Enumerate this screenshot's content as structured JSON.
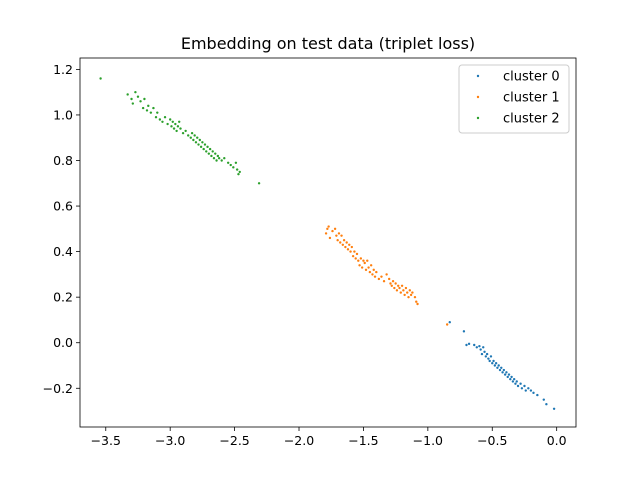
{
  "chart_data": {
    "type": "scatter",
    "title": "Embedding on test data (triplet loss)",
    "xlabel": "",
    "ylabel": "",
    "xlim": [
      -3.7,
      0.15
    ],
    "ylim": [
      -0.37,
      1.25
    ],
    "xticks": [
      -3.5,
      -3.0,
      -2.5,
      -2.0,
      -1.5,
      -1.0,
      -0.5,
      0.0
    ],
    "yticks": [
      -0.2,
      0.0,
      0.2,
      0.4,
      0.6,
      0.8,
      1.0,
      1.2
    ],
    "xtick_labels": [
      "−3.5",
      "−3.0",
      "−2.5",
      "−2.0",
      "−1.5",
      "−1.0",
      "−0.5",
      "0.0"
    ],
    "ytick_labels": [
      "−0.2",
      "0.0",
      "0.2",
      "0.4",
      "0.6",
      "0.8",
      "1.0",
      "1.2"
    ],
    "grid": false,
    "legend_position": "top-right",
    "series": [
      {
        "name": "cluster 0",
        "color": "#1f77b4",
        "points": [
          [
            -0.83,
            0.09
          ],
          [
            -0.72,
            0.05
          ],
          [
            -0.7,
            -0.01
          ],
          [
            -0.68,
            -0.005
          ],
          [
            -0.64,
            -0.01
          ],
          [
            -0.62,
            -0.02
          ],
          [
            -0.6,
            -0.015
          ],
          [
            -0.59,
            -0.03
          ],
          [
            -0.58,
            -0.05
          ],
          [
            -0.57,
            -0.02
          ],
          [
            -0.56,
            -0.04
          ],
          [
            -0.55,
            -0.06
          ],
          [
            -0.54,
            -0.05
          ],
          [
            -0.53,
            -0.07
          ],
          [
            -0.52,
            -0.08
          ],
          [
            -0.51,
            -0.06
          ],
          [
            -0.5,
            -0.09
          ],
          [
            -0.49,
            -0.08
          ],
          [
            -0.48,
            -0.1
          ],
          [
            -0.47,
            -0.09
          ],
          [
            -0.46,
            -0.11
          ],
          [
            -0.45,
            -0.1
          ],
          [
            -0.44,
            -0.12
          ],
          [
            -0.43,
            -0.11
          ],
          [
            -0.42,
            -0.13
          ],
          [
            -0.41,
            -0.12
          ],
          [
            -0.4,
            -0.14
          ],
          [
            -0.39,
            -0.13
          ],
          [
            -0.38,
            -0.15
          ],
          [
            -0.37,
            -0.14
          ],
          [
            -0.36,
            -0.16
          ],
          [
            -0.35,
            -0.15
          ],
          [
            -0.34,
            -0.17
          ],
          [
            -0.33,
            -0.16
          ],
          [
            -0.32,
            -0.18
          ],
          [
            -0.31,
            -0.17
          ],
          [
            -0.3,
            -0.19
          ],
          [
            -0.28,
            -0.18
          ],
          [
            -0.27,
            -0.2
          ],
          [
            -0.25,
            -0.19
          ],
          [
            -0.24,
            -0.21
          ],
          [
            -0.22,
            -0.2
          ],
          [
            -0.2,
            -0.21
          ],
          [
            -0.18,
            -0.22
          ],
          [
            -0.15,
            -0.23
          ],
          [
            -0.1,
            -0.25
          ],
          [
            -0.08,
            -0.27
          ],
          [
            -0.02,
            -0.29
          ]
        ]
      },
      {
        "name": "cluster 1",
        "color": "#ff7f0e",
        "points": [
          [
            -1.79,
            0.48
          ],
          [
            -1.78,
            0.5
          ],
          [
            -1.77,
            0.51
          ],
          [
            -1.76,
            0.46
          ],
          [
            -1.74,
            0.49
          ],
          [
            -1.72,
            0.5
          ],
          [
            -1.71,
            0.47
          ],
          [
            -1.7,
            0.45
          ],
          [
            -1.69,
            0.48
          ],
          [
            -1.68,
            0.44
          ],
          [
            -1.67,
            0.47
          ],
          [
            -1.66,
            0.43
          ],
          [
            -1.65,
            0.45
          ],
          [
            -1.64,
            0.42
          ],
          [
            -1.63,
            0.44
          ],
          [
            -1.62,
            0.41
          ],
          [
            -1.61,
            0.43
          ],
          [
            -1.6,
            0.4
          ],
          [
            -1.59,
            0.42
          ],
          [
            -1.58,
            0.38
          ],
          [
            -1.57,
            0.4
          ],
          [
            -1.56,
            0.37
          ],
          [
            -1.55,
            0.39
          ],
          [
            -1.54,
            0.36
          ],
          [
            -1.53,
            0.34
          ],
          [
            -1.52,
            0.37
          ],
          [
            -1.51,
            0.33
          ],
          [
            -1.5,
            0.36
          ],
          [
            -1.49,
            0.35
          ],
          [
            -1.48,
            0.32
          ],
          [
            -1.47,
            0.36
          ],
          [
            -1.46,
            0.33
          ],
          [
            -1.45,
            0.31
          ],
          [
            -1.44,
            0.34
          ],
          [
            -1.43,
            0.3
          ],
          [
            -1.42,
            0.32
          ],
          [
            -1.41,
            0.29
          ],
          [
            -1.4,
            0.31
          ],
          [
            -1.38,
            0.28
          ],
          [
            -1.36,
            0.29
          ],
          [
            -1.34,
            0.27
          ],
          [
            -1.32,
            0.3
          ],
          [
            -1.3,
            0.28
          ],
          [
            -1.29,
            0.26
          ],
          [
            -1.28,
            0.25
          ],
          [
            -1.27,
            0.27
          ],
          [
            -1.26,
            0.24
          ],
          [
            -1.25,
            0.26
          ],
          [
            -1.24,
            0.23
          ],
          [
            -1.23,
            0.25
          ],
          [
            -1.22,
            0.24
          ],
          [
            -1.21,
            0.22
          ],
          [
            -1.2,
            0.25
          ],
          [
            -1.19,
            0.23
          ],
          [
            -1.18,
            0.21
          ],
          [
            -1.17,
            0.24
          ],
          [
            -1.16,
            0.22
          ],
          [
            -1.15,
            0.2
          ],
          [
            -1.14,
            0.23
          ],
          [
            -1.13,
            0.21
          ],
          [
            -1.12,
            0.22
          ],
          [
            -1.1,
            0.2
          ],
          [
            -1.09,
            0.18
          ],
          [
            -1.08,
            0.17
          ],
          [
            -0.85,
            0.08
          ]
        ]
      },
      {
        "name": "cluster 2",
        "color": "#2ca02c",
        "points": [
          [
            -3.54,
            1.16
          ],
          [
            -3.33,
            1.09
          ],
          [
            -3.3,
            1.07
          ],
          [
            -3.29,
            1.05
          ],
          [
            -3.27,
            1.1
          ],
          [
            -3.25,
            1.08
          ],
          [
            -3.23,
            1.06
          ],
          [
            -3.21,
            1.03
          ],
          [
            -3.2,
            1.07
          ],
          [
            -3.18,
            1.02
          ],
          [
            -3.17,
            1.04
          ],
          [
            -3.15,
            1.01
          ],
          [
            -3.13,
            1.03
          ],
          [
            -3.11,
            0.99
          ],
          [
            -3.1,
            1.01
          ],
          [
            -3.08,
            0.98
          ],
          [
            -3.06,
            0.97
          ],
          [
            -3.04,
            0.99
          ],
          [
            -3.02,
            0.96
          ],
          [
            -3.0,
            0.98
          ],
          [
            -2.99,
            0.95
          ],
          [
            -2.98,
            0.97
          ],
          [
            -2.97,
            0.94
          ],
          [
            -2.96,
            0.96
          ],
          [
            -2.95,
            0.93
          ],
          [
            -2.94,
            0.95
          ],
          [
            -2.93,
            0.97
          ],
          [
            -2.92,
            0.94
          ],
          [
            -2.9,
            0.92
          ],
          [
            -2.88,
            0.93
          ],
          [
            -2.86,
            0.91
          ],
          [
            -2.84,
            0.9
          ],
          [
            -2.83,
            0.92
          ],
          [
            -2.82,
            0.89
          ],
          [
            -2.81,
            0.91
          ],
          [
            -2.8,
            0.88
          ],
          [
            -2.79,
            0.9
          ],
          [
            -2.78,
            0.87
          ],
          [
            -2.77,
            0.89
          ],
          [
            -2.76,
            0.86
          ],
          [
            -2.75,
            0.88
          ],
          [
            -2.74,
            0.85
          ],
          [
            -2.73,
            0.87
          ],
          [
            -2.72,
            0.84
          ],
          [
            -2.71,
            0.86
          ],
          [
            -2.7,
            0.83
          ],
          [
            -2.69,
            0.85
          ],
          [
            -2.68,
            0.82
          ],
          [
            -2.67,
            0.84
          ],
          [
            -2.66,
            0.81
          ],
          [
            -2.65,
            0.83
          ],
          [
            -2.64,
            0.8
          ],
          [
            -2.63,
            0.82
          ],
          [
            -2.62,
            0.81
          ],
          [
            -2.6,
            0.8
          ],
          [
            -2.58,
            0.81
          ],
          [
            -2.55,
            0.79
          ],
          [
            -2.53,
            0.78
          ],
          [
            -2.51,
            0.77
          ],
          [
            -2.49,
            0.79
          ],
          [
            -2.48,
            0.76
          ],
          [
            -2.47,
            0.74
          ],
          [
            -2.46,
            0.75
          ],
          [
            -2.31,
            0.7
          ]
        ]
      }
    ]
  }
}
